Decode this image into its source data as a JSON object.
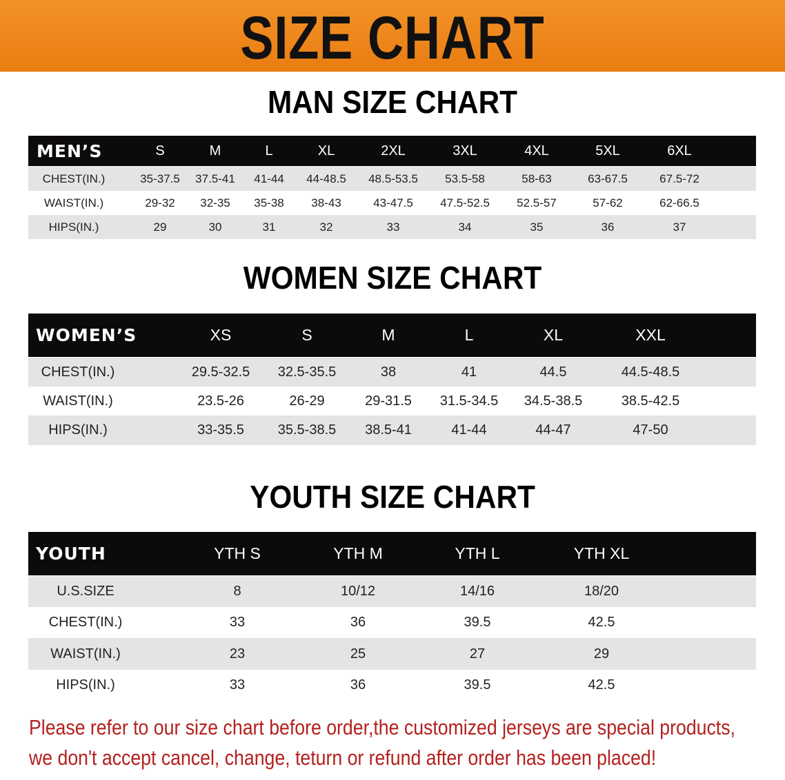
{
  "title": "SIZE CHART",
  "men": {
    "section_title": "MAN SIZE CHART",
    "header_label": "MEN’S",
    "sizes": [
      "S",
      "M",
      "L",
      "XL",
      "2XL",
      "3XL",
      "4XL",
      "5XL",
      "6XL"
    ],
    "rows": [
      {
        "label": "CHEST(IN.)",
        "values": [
          "35-37.5",
          "37.5-41",
          "41-44",
          "44-48.5",
          "48.5-53.5",
          "53.5-58",
          "58-63",
          "63-67.5",
          "67.5-72"
        ]
      },
      {
        "label": "WAIST(IN.)",
        "values": [
          "29-32",
          "32-35",
          "35-38",
          "38-43",
          "43-47.5",
          "47.5-52.5",
          "52.5-57",
          "57-62",
          "62-66.5"
        ]
      },
      {
        "label": "HIPS(IN.)",
        "values": [
          "29",
          "30",
          "31",
          "32",
          "33",
          "34",
          "35",
          "36",
          "37"
        ]
      }
    ]
  },
  "women": {
    "section_title": "WOMEN SIZE CHART",
    "header_label": "WOMEN’S",
    "sizes": [
      "XS",
      "S",
      "M",
      "L",
      "XL",
      "XXL"
    ],
    "rows": [
      {
        "label": "CHEST(IN.)",
        "values": [
          "29.5-32.5",
          "32.5-35.5",
          "38",
          "41",
          "44.5",
          "44.5-48.5"
        ]
      },
      {
        "label": "WAIST(IN.)",
        "values": [
          "23.5-26",
          "26-29",
          "29-31.5",
          "31.5-34.5",
          "34.5-38.5",
          "38.5-42.5"
        ]
      },
      {
        "label": "HIPS(IN.)",
        "values": [
          "33-35.5",
          "35.5-38.5",
          "38.5-41",
          "41-44",
          "44-47",
          "47-50"
        ]
      }
    ]
  },
  "youth": {
    "section_title": "YOUTH SIZE CHART",
    "header_label": "YOUTH",
    "sizes": [
      "YTH S",
      "YTH M",
      "YTH L",
      "YTH XL"
    ],
    "rows": [
      {
        "label": "U.S.SIZE",
        "values": [
          "8",
          "10/12",
          "14/16",
          "18/20"
        ]
      },
      {
        "label": "CHEST(IN.)",
        "values": [
          "33",
          "36",
          "39.5",
          "42.5"
        ]
      },
      {
        "label": "WAIST(IN.)",
        "values": [
          "23",
          "25",
          "27",
          "29"
        ]
      },
      {
        "label": "HIPS(IN.)",
        "values": [
          "33",
          "36",
          "39.5",
          "42.5"
        ]
      }
    ]
  },
  "notice": [
    "Please refer to our size chart before order,the customized jerseys are special products,",
    "we don't accept cancel, change, teturn or refund after order has been placed!"
  ],
  "colors": {
    "banner": "#ef8a1f",
    "header_row": "#0d0a0a",
    "stripe": "#e4e4e4",
    "notice": "#b3211f"
  }
}
